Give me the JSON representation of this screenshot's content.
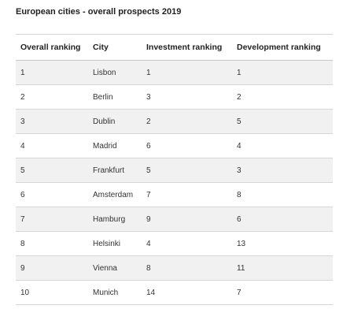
{
  "chart_data": {
    "type": "table",
    "title": "European cities - overall prospects 2019",
    "columns": [
      "Overall ranking",
      "City",
      "Investment ranking",
      "Development ranking"
    ],
    "rows": [
      [
        "1",
        "Lisbon",
        "1",
        "1"
      ],
      [
        "2",
        "Berlin",
        "3",
        "2"
      ],
      [
        "3",
        "Dublin",
        "2",
        "5"
      ],
      [
        "4",
        "Madrid",
        "6",
        "4"
      ],
      [
        "5",
        "Frankfurt",
        "5",
        "3"
      ],
      [
        "6",
        "Amsterdam",
        "7",
        "8"
      ],
      [
        "7",
        "Hamburg",
        "9",
        "6"
      ],
      [
        "8",
        "Helsinki",
        "4",
        "13"
      ],
      [
        "9",
        "Vienna",
        "8",
        "11"
      ],
      [
        "10",
        "Munich",
        "14",
        "7"
      ]
    ]
  }
}
